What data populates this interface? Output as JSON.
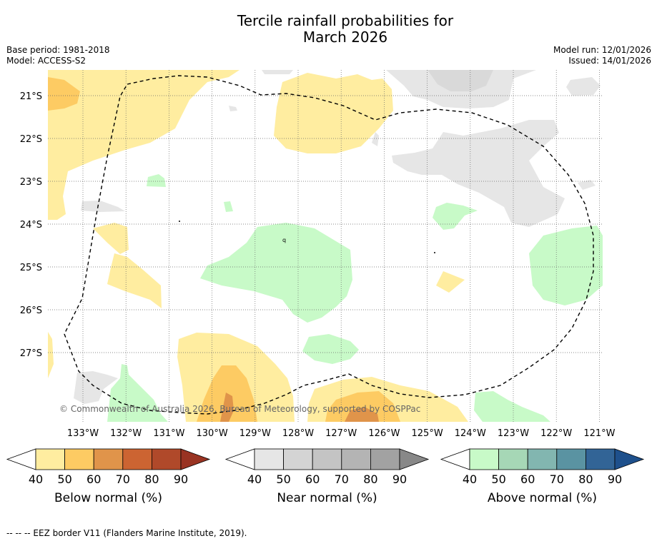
{
  "title_line1": "Tercile rainfall probabilities for",
  "title_line2": "March 2026",
  "base_period": "Base period: 1981-2018",
  "model": "Model: ACCESS-S2",
  "model_run": "Model run: 12/01/2026",
  "issued": "Issued: 14/01/2026",
  "lat_labels": [
    "21°S",
    "22°S",
    "23°S",
    "24°S",
    "25°S",
    "26°S",
    "27°S"
  ],
  "lon_labels": [
    "133°W",
    "132°W",
    "131°W",
    "130°W",
    "129°W",
    "128°W",
    "127°W",
    "126°W",
    "125°W",
    "124°W",
    "123°W",
    "122°W",
    "121°W"
  ],
  "copyright": "© Commonwealth of Australia 2026, Bureau of Meteorology, supported by COSPPac",
  "colorbars": [
    {
      "label": "Below normal (%)",
      "ticks": [
        "40",
        "50",
        "60",
        "70",
        "80",
        "90"
      ],
      "colors": [
        "#ffeda0",
        "#fdcb63",
        "#e0944a",
        "#cc6432",
        "#b0492a"
      ],
      "extend_color": "#993322"
    },
    {
      "label": "Near normal (%)",
      "ticks": [
        "40",
        "50",
        "60",
        "70",
        "80",
        "90"
      ],
      "colors": [
        "#e6e6e6",
        "#d4d4d4",
        "#c4c4c4",
        "#b4b4b4",
        "#a2a2a2"
      ],
      "extend_color": "#888888"
    },
    {
      "label": "Above normal (%)",
      "ticks": [
        "40",
        "50",
        "60",
        "70",
        "80",
        "90"
      ],
      "colors": [
        "#c8fac8",
        "#a6d7b6",
        "#82b6b0",
        "#5a93a2",
        "#326496"
      ],
      "extend_color": "#1e508c"
    }
  ],
  "footnote": "--  --  -- EEZ border V11 (Flanders Marine Institute, 2019).",
  "colors": {
    "below_40": "#ffeda0",
    "below_50": "#fdcb63",
    "below_60": "#e0944a",
    "near_40": "#e6e6e6",
    "near_50": "#d9d9d9",
    "above_40": "#c8fac8",
    "grid": "#555555",
    "eez": "#000000"
  }
}
